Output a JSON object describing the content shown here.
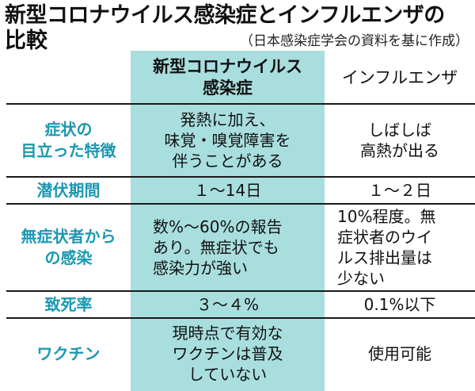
{
  "title": {
    "line1": "新型コロナウイルス感染症とインフルエンザの",
    "line2": "比較",
    "source": "（日本感染症学会の資料を基に作成）"
  },
  "columns": {
    "covid": "新型コロナウイルス\n感染症",
    "flu": "インフルエンザ"
  },
  "rows": [
    {
      "label": "症状の\n目立った特徴",
      "covid": "発熱に加え、\n味覚・嗅覚障害を\n伴うことがある",
      "flu": "しばしば\n高熱が出る"
    },
    {
      "label": "潜伏期間",
      "covid": "１〜14日",
      "flu": "１〜２日"
    },
    {
      "label": "無症状者から\nの感染",
      "covid": "数%〜60%の報告\nあり。無症状でも\n感染力が強い",
      "flu": "10%程度。無\n症状者のウイ\nルス排出量は\n少ない"
    },
    {
      "label": "致死率",
      "covid": "３〜４%",
      "flu": "0.1%以下"
    },
    {
      "label": "ワクチン",
      "covid": "現時点で有効な\nワクチンは普及\nしていない",
      "flu": "使用可能"
    }
  ],
  "colors": {
    "highlight": "#a9dede",
    "row_label": "#1a98b2",
    "text": "#111111",
    "rule": "#1a1a1a"
  }
}
